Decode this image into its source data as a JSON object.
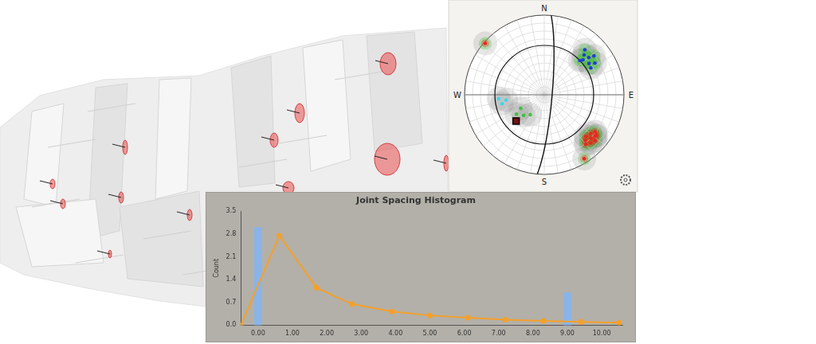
{
  "chart_data": {
    "type": "bar",
    "title": "Joint Spacing Histogram",
    "y_label": "Count",
    "xlim": [
      -0.5,
      10.6
    ],
    "xticks": [
      {
        "value": 0,
        "label": "0.00"
      },
      {
        "value": 1,
        "label": "1.00"
      },
      {
        "value": 2,
        "label": "2.00"
      },
      {
        "value": 3,
        "label": "3.00"
      },
      {
        "value": 4,
        "label": "4.00"
      },
      {
        "value": 5,
        "label": "5.00"
      },
      {
        "value": 6,
        "label": "6.00"
      },
      {
        "value": 7,
        "label": "7.00"
      },
      {
        "value": 8,
        "label": "8.00"
      },
      {
        "value": 9,
        "label": "9.00"
      },
      {
        "value": 10,
        "label": "10.00"
      }
    ],
    "ylim": [
      0,
      3.5
    ],
    "yticks": [
      {
        "value": 0,
        "label": "0.0"
      },
      {
        "value": 0.7,
        "label": "0.7"
      },
      {
        "value": 1.4,
        "label": "1.4"
      },
      {
        "value": 2.1,
        "label": "2.1"
      },
      {
        "value": 2.8,
        "label": "2.8"
      },
      {
        "value": 3.5,
        "label": "3.5"
      }
    ],
    "grid": false,
    "series": [
      {
        "type": "bar",
        "color": "#8ab4e8",
        "x": [
          0,
          9
        ],
        "values": [
          3,
          1
        ]
      },
      {
        "type": "line",
        "color": "#f5a02a",
        "marker": "circle",
        "x": [
          -0.5,
          0.62,
          1.7,
          2.73,
          3.9,
          5.0,
          6.1,
          7.2,
          8.3,
          9.4,
          10.5
        ],
        "values": [
          0,
          2.75,
          1.15,
          0.65,
          0.42,
          0.3,
          0.23,
          0.17,
          0.13,
          0.1,
          0.08
        ]
      }
    ]
  },
  "stereonet": {
    "directions": [
      {
        "label": "N",
        "azimuth": 0
      },
      {
        "label": "E",
        "azimuth": 90
      },
      {
        "label": "S",
        "azimuth": 180
      },
      {
        "label": "W",
        "azimuth": 270
      }
    ],
    "sets": [
      {
        "color": "#e8281e",
        "poles": [
          [
            128,
            18
          ],
          [
            133,
            21
          ],
          [
            138,
            24
          ],
          [
            130,
            25
          ],
          [
            136,
            17
          ],
          [
            126,
            22
          ],
          [
            140,
            20
          ],
          [
            132,
            15
          ],
          [
            135,
            27
          ],
          [
            129,
            19
          ],
          [
            148,
            6
          ],
          [
            311,
            2
          ]
        ]
      },
      {
        "color": "#1f3fcf",
        "poles": [
          [
            45,
            30
          ],
          [
            50,
            28
          ],
          [
            55,
            32
          ],
          [
            48,
            35
          ],
          [
            58,
            26
          ],
          [
            42,
            25
          ],
          [
            52,
            22
          ],
          [
            60,
            33
          ],
          [
            46,
            38
          ]
        ]
      },
      {
        "color": "#37d8e8",
        "poles": [
          [
            258,
            45
          ],
          [
            262,
            50
          ],
          [
            265,
            42
          ]
        ]
      },
      {
        "color": "#3ec43e",
        "poles": [
          [
            225,
            60
          ],
          [
            215,
            65
          ],
          [
            235,
            55
          ],
          [
            240,
            62
          ]
        ]
      }
    ],
    "mean": {
      "trend": 227,
      "plunge": 50,
      "marker": "square"
    },
    "plane": {
      "dip_direction": 95,
      "dip": 82
    },
    "cone_plunge": 38
  }
}
